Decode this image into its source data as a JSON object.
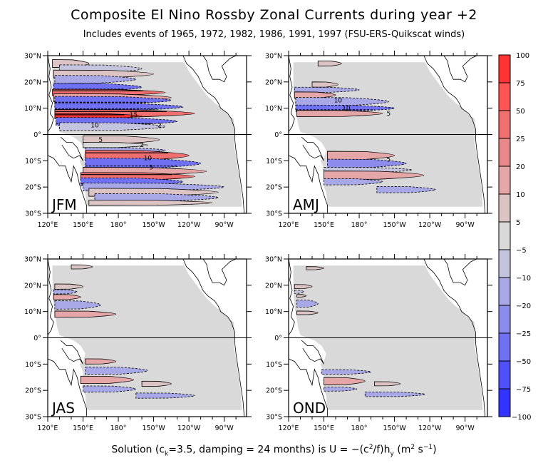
{
  "title": "Composite El Nino Rossby Zonal Currents during year  +2",
  "subtitle": "Includes events of 1965, 1972, 1982, 1986, 1991, 1997 (FSU-ERS-Quikscat winds)",
  "footer": {
    "prefix": "Solution (c",
    "sub_k": "k",
    "middle": "=3.5, damping = 24 months) is U = −(c",
    "sup_2": "2",
    "after_sup": "/f)h",
    "sub_y": "y",
    "units_open": " (m",
    "units_sup2": "2",
    "units_mid": " s",
    "units_sup_m1": "−1",
    "units_close": ")"
  },
  "chart_data": {
    "type": "heatmap",
    "title": "Composite El Nino Rossby Zonal Currents during year  +2",
    "subtitle": "Includes events of 1965, 1972, 1982, 1986, 1991, 1997 (FSU-ERS-Quikscat winds)",
    "variable": "U = -(c^2/f) h_y",
    "units": "m^2 s^-1",
    "x_range": [
      120,
      289
    ],
    "x_range_note": "longitude, 120°E to ~71°W (degrees east)",
    "y_range": [
      -30,
      30
    ],
    "x_ticks": [
      {
        "value": 120,
        "label": "120°E"
      },
      {
        "value": 150,
        "label": "150°E"
      },
      {
        "value": 180,
        "label": "180°"
      },
      {
        "value": 210,
        "label": "150°W"
      },
      {
        "value": 240,
        "label": "120°W"
      },
      {
        "value": 270,
        "label": "90°W"
      }
    ],
    "y_ticks": [
      {
        "value": 30,
        "label": "30°N"
      },
      {
        "value": 20,
        "label": "20°N"
      },
      {
        "value": 10,
        "label": "10°N"
      },
      {
        "value": 0,
        "label": "0°"
      },
      {
        "value": -10,
        "label": "10°S"
      },
      {
        "value": -20,
        "label": "20°S"
      },
      {
        "value": -30,
        "label": "30°S"
      }
    ],
    "colorbar": {
      "levels": [
        100,
        75,
        50,
        25,
        20,
        10,
        5,
        -5,
        -10,
        -20,
        -25,
        -50,
        -75,
        -100
      ],
      "labels": [
        "100",
        "75",
        "50",
        "25",
        "20",
        "10",
        "5",
        "−5",
        "−10",
        "−20",
        "−25",
        "−50",
        "−75",
        "−100"
      ],
      "colors": [
        "#ff3333",
        "#ff5555",
        "#f07070",
        "#e88888",
        "#e4a6a6",
        "#dcc4c4",
        "#d9d9d9",
        "#c4c4df",
        "#a8a8e6",
        "#8c8ced",
        "#7070f2",
        "#5050f8",
        "#3333ff"
      ]
    },
    "ocean_color": "#d9d9d9",
    "panels": [
      {
        "name": "JFM",
        "bands": [
          {
            "lat": 27,
            "lon0": 124,
            "lon1": 155,
            "w": 1.5,
            "v": 8
          },
          {
            "lat": 25,
            "lon0": 130,
            "lon1": 200,
            "w": 1.5,
            "v": -8
          },
          {
            "lat": 23,
            "lon0": 125,
            "lon1": 210,
            "w": 1.5,
            "v": 8
          },
          {
            "lat": 21,
            "lon0": 126,
            "lon1": 195,
            "w": 1.5,
            "v": -10
          },
          {
            "lat": 18,
            "lon0": 125,
            "lon1": 200,
            "w": 1.5,
            "v": -30
          },
          {
            "lat": 16,
            "lon0": 124,
            "lon1": 220,
            "w": 1.2,
            "v": 30
          },
          {
            "lat": 14,
            "lon0": 125,
            "lon1": 225,
            "w": 1.5,
            "v": 12
          },
          {
            "lat": 13,
            "lon0": 126,
            "lon1": 225,
            "w": 1.5,
            "v": -30
          },
          {
            "lat": 10.5,
            "lon0": 126,
            "lon1": 235,
            "w": 1.5,
            "v": -45
          },
          {
            "lat": 8,
            "lon0": 126,
            "lon1": 245,
            "w": 1.5,
            "v": 35
          },
          {
            "lat": 7,
            "lon0": 126,
            "lon1": 200,
            "w": 1,
            "v": 80
          },
          {
            "lat": 5,
            "lon0": 127,
            "lon1": 230,
            "w": 1.5,
            "v": -25
          },
          {
            "lat": 3,
            "lon0": 130,
            "lon1": 220,
            "w": 1.5,
            "v": -8
          },
          {
            "lat": -2,
            "lon0": 150,
            "lon1": 215,
            "w": 1.5,
            "v": 8
          },
          {
            "lat": -4,
            "lon0": 150,
            "lon1": 205,
            "w": 1,
            "v": 4
          },
          {
            "lat": -6,
            "lon0": 152,
            "lon1": 220,
            "w": 1,
            "v": -15
          },
          {
            "lat": -8,
            "lon0": 152,
            "lon1": 240,
            "w": 2,
            "v": 30
          },
          {
            "lat": -11,
            "lon0": 152,
            "lon1": 250,
            "w": 2,
            "v": -40
          },
          {
            "lat": -14,
            "lon0": 150,
            "lon1": 255,
            "w": 1.5,
            "v": 20
          },
          {
            "lat": -16,
            "lon0": 148,
            "lon1": 245,
            "w": 1.5,
            "v": 45
          },
          {
            "lat": -18,
            "lon0": 148,
            "lon1": 235,
            "w": 1.5,
            "v": -35
          },
          {
            "lat": -20,
            "lon0": 150,
            "lon1": 270,
            "w": 1.5,
            "v": -15
          },
          {
            "lat": -22,
            "lon0": 155,
            "lon1": 265,
            "w": 1.5,
            "v": 8
          },
          {
            "lat": -24,
            "lon0": 160,
            "lon1": 265,
            "w": 1.5,
            "v": -12
          },
          {
            "lat": -26,
            "lon0": 155,
            "lon1": 260,
            "w": 1,
            "v": 8
          }
        ],
        "contour_labels": [
          {
            "text": "15",
            "lon": 193,
            "lat": 7.5
          },
          {
            "text": "10",
            "lon": 160,
            "lat": 3.5
          },
          {
            "text": "2",
            "lon": 215,
            "lat": 3.5
          },
          {
            "text": "5",
            "lon": 165,
            "lat": -2
          },
          {
            "text": "2",
            "lon": 200,
            "lat": -4
          },
          {
            "text": "10",
            "lon": 205,
            "lat": -9
          },
          {
            "text": "5",
            "lon": 208,
            "lat": -12.5
          }
        ]
      },
      {
        "name": "AMJ",
        "bands": [
          {
            "lat": 27,
            "lon0": 145,
            "lon1": 165,
            "w": 1,
            "v": 8
          },
          {
            "lat": 19,
            "lon0": 140,
            "lon1": 162,
            "w": 1,
            "v": 8
          },
          {
            "lat": 17,
            "lon0": 125,
            "lon1": 180,
            "w": 1,
            "v": -10
          },
          {
            "lat": 15,
            "lon0": 125,
            "lon1": 160,
            "w": 1.2,
            "v": 20
          },
          {
            "lat": 12.5,
            "lon0": 126,
            "lon1": 205,
            "w": 1.6,
            "v": -15
          },
          {
            "lat": 10,
            "lon0": 126,
            "lon1": 210,
            "w": 1.2,
            "v": -25
          },
          {
            "lat": 8,
            "lon0": 127,
            "lon1": 200,
            "w": 1.2,
            "v": 20
          },
          {
            "lat": -8,
            "lon0": 153,
            "lon1": 210,
            "w": 1.6,
            "v": 15
          },
          {
            "lat": -11,
            "lon0": 153,
            "lon1": 220,
            "w": 1.6,
            "v": -20
          },
          {
            "lat": -13.5,
            "lon0": 150,
            "lon1": 225,
            "w": 1,
            "v": -8
          },
          {
            "lat": -15.5,
            "lon0": 150,
            "lon1": 235,
            "w": 1.6,
            "v": 20
          },
          {
            "lat": -18,
            "lon0": 150,
            "lon1": 200,
            "w": 1.2,
            "v": -15
          },
          {
            "lat": -21,
            "lon0": 195,
            "lon1": 245,
            "w": 1.2,
            "v": -10
          }
        ],
        "contour_labels": [
          {
            "text": "10",
            "lon": 162,
            "lat": 13
          },
          {
            "text": "10",
            "lon": 169,
            "lat": 10
          },
          {
            "text": "5",
            "lon": 205,
            "lat": 8
          },
          {
            "text": "5",
            "lon": 205,
            "lat": -9.5
          }
        ]
      },
      {
        "name": "JAS",
        "bands": [
          {
            "lat": 27,
            "lon0": 140,
            "lon1": 158,
            "w": 0.8,
            "v": 8
          },
          {
            "lat": 19.5,
            "lon0": 126,
            "lon1": 150,
            "w": 1,
            "v": 8
          },
          {
            "lat": 17.5,
            "lon0": 125,
            "lon1": 145,
            "w": 0.8,
            "v": -10
          },
          {
            "lat": 15.5,
            "lon0": 125,
            "lon1": 148,
            "w": 1,
            "v": 15
          },
          {
            "lat": 12.5,
            "lon0": 126,
            "lon1": 165,
            "w": 1.6,
            "v": -10
          },
          {
            "lat": 9,
            "lon0": 126,
            "lon1": 178,
            "w": 1.2,
            "v": 12
          },
          {
            "lat": -9,
            "lon0": 152,
            "lon1": 178,
            "w": 1,
            "v": 12
          },
          {
            "lat": -12.5,
            "lon0": 152,
            "lon1": 205,
            "w": 1.4,
            "v": -10
          },
          {
            "lat": -16,
            "lon0": 148,
            "lon1": 193,
            "w": 1.4,
            "v": 20
          },
          {
            "lat": -17.5,
            "lon0": 200,
            "lon1": 225,
            "w": 1,
            "v": 8
          },
          {
            "lat": -19.5,
            "lon0": 150,
            "lon1": 195,
            "w": 1.2,
            "v": -10
          },
          {
            "lat": -22,
            "lon0": 195,
            "lon1": 245,
            "w": 1,
            "v": -10
          }
        ],
        "contour_labels": []
      },
      {
        "name": "OND",
        "bands": [
          {
            "lat": 26.5,
            "lon0": 135,
            "lon1": 150,
            "w": 0.6,
            "v": 8
          },
          {
            "lat": 19.5,
            "lon0": 125,
            "lon1": 140,
            "w": 0.8,
            "v": 8
          },
          {
            "lat": 17.5,
            "lon0": 125,
            "lon1": 133,
            "w": 0.6,
            "v": -8
          },
          {
            "lat": 16,
            "lon0": 127,
            "lon1": 135,
            "w": 0.5,
            "v": 10
          },
          {
            "lat": 13,
            "lon0": 127,
            "lon1": 145,
            "w": 1.4,
            "v": -10
          },
          {
            "lat": 9.5,
            "lon0": 127,
            "lon1": 145,
            "w": 0.7,
            "v": 10
          },
          {
            "lat": -13,
            "lon0": 148,
            "lon1": 190,
            "w": 0.9,
            "v": -10
          },
          {
            "lat": -16.5,
            "lon0": 150,
            "lon1": 185,
            "w": 1.4,
            "v": 20
          },
          {
            "lat": -17.5,
            "lon0": 193,
            "lon1": 215,
            "w": 0.8,
            "v": 8
          },
          {
            "lat": -19.5,
            "lon0": 150,
            "lon1": 178,
            "w": 0.8,
            "v": -10
          },
          {
            "lat": -21.5,
            "lon0": 185,
            "lon1": 236,
            "w": 0.9,
            "v": -10
          }
        ],
        "contour_labels": []
      }
    ]
  }
}
